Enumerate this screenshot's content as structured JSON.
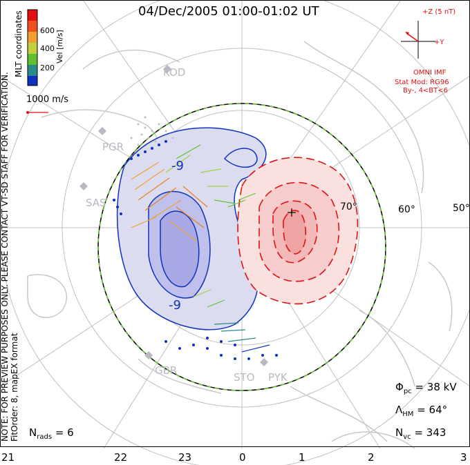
{
  "title": "04/Dec/2005 01:00-01:02 UT",
  "colorbar": {
    "title": "Vel [m/s]",
    "ticks": [
      "600",
      "400",
      "200"
    ],
    "coords": "MLT coordinates"
  },
  "scale_vector": "1000 m/s",
  "notice": "NOTE: FOR PREVIEW PURPOSES ONLY. PLEASE CONTACT VT-SD STAFF FOR VERIFICATION.",
  "fit_order": "FitOrder: 8, mapEX format",
  "imf": {
    "z_label": "+Z (5 nT)",
    "y_label": "+Y",
    "source": "OMNI IMF",
    "model": "Stat Mod: RG96",
    "condition": "By-, 4<BT<6"
  },
  "stations": [
    "KOD",
    "PGR",
    "SAS",
    "GBR",
    "STO",
    "PYK"
  ],
  "contour_labels": [
    "-9",
    "-9"
  ],
  "latitude_labels": [
    "70°",
    "60°",
    "50°"
  ],
  "mlt_labels": [
    "21",
    "22",
    "23",
    "0",
    "1",
    "2",
    "3"
  ],
  "stats": {
    "nrads_sym": "N",
    "nrads_sub": "rads",
    "nrads_val": "= 6",
    "phi_sym": "Φ",
    "phi_sub": "pc",
    "phi_val": "= 38 kV",
    "lam_sym": "Λ",
    "lam_sub": "HM",
    "lam_val": "= 64°",
    "nvc_sym": "N",
    "nvc_sub": "vc",
    "nvc_val": "= 343"
  },
  "colors": {
    "positive": "#e01010",
    "negative": "#1030c0",
    "boundary": "#60c030"
  }
}
